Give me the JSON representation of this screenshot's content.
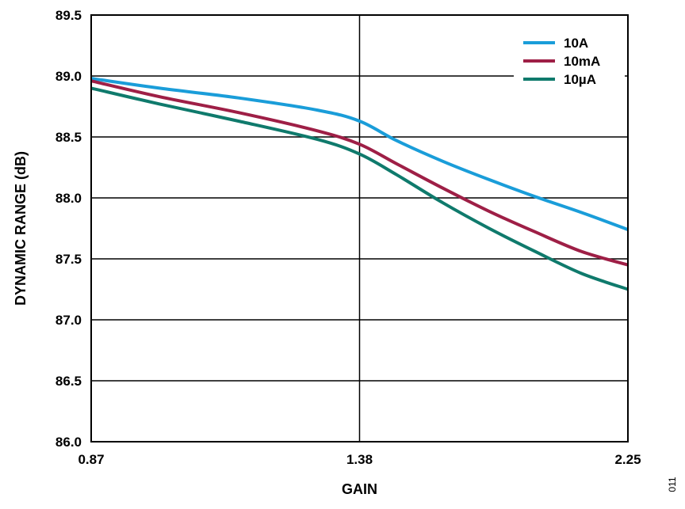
{
  "chart_data": {
    "type": "line",
    "xlabel": "GAIN",
    "ylabel": "DYNAMIC RANGE (dB)",
    "x_ticks": [
      "0.87",
      "1.38",
      "2.25"
    ],
    "y_ticks": [
      "86.0",
      "86.5",
      "87.0",
      "87.5",
      "88.0",
      "88.5",
      "89.0",
      "89.5"
    ],
    "xlim": [
      0.87,
      2.25
    ],
    "ylim": [
      86.0,
      89.5
    ],
    "legend_position": "top-right",
    "grid": true,
    "series": [
      {
        "name": "10A",
        "color": "#1a9dd9",
        "x": [
          0.87,
          1.0,
          1.15,
          1.3,
          1.38,
          1.5,
          1.65,
          1.8,
          1.95,
          2.1,
          2.25
        ],
        "y": [
          88.98,
          88.9,
          88.82,
          88.72,
          88.63,
          88.47,
          88.3,
          88.15,
          88.01,
          87.88,
          87.74
        ]
      },
      {
        "name": "10mA",
        "color": "#9e1f46",
        "x": [
          0.87,
          1.0,
          1.15,
          1.3,
          1.38,
          1.5,
          1.65,
          1.8,
          1.95,
          2.1,
          2.25
        ],
        "y": [
          88.96,
          88.83,
          88.7,
          88.55,
          88.44,
          88.28,
          88.08,
          87.89,
          87.72,
          87.56,
          87.45
        ]
      },
      {
        "name": "10µA",
        "color": "#0f7a6c",
        "x": [
          0.87,
          1.0,
          1.15,
          1.3,
          1.38,
          1.5,
          1.65,
          1.8,
          1.95,
          2.1,
          2.25
        ],
        "y": [
          88.9,
          88.77,
          88.63,
          88.48,
          88.36,
          88.19,
          87.96,
          87.75,
          87.56,
          87.38,
          87.25
        ]
      }
    ]
  },
  "figure_id": "011"
}
